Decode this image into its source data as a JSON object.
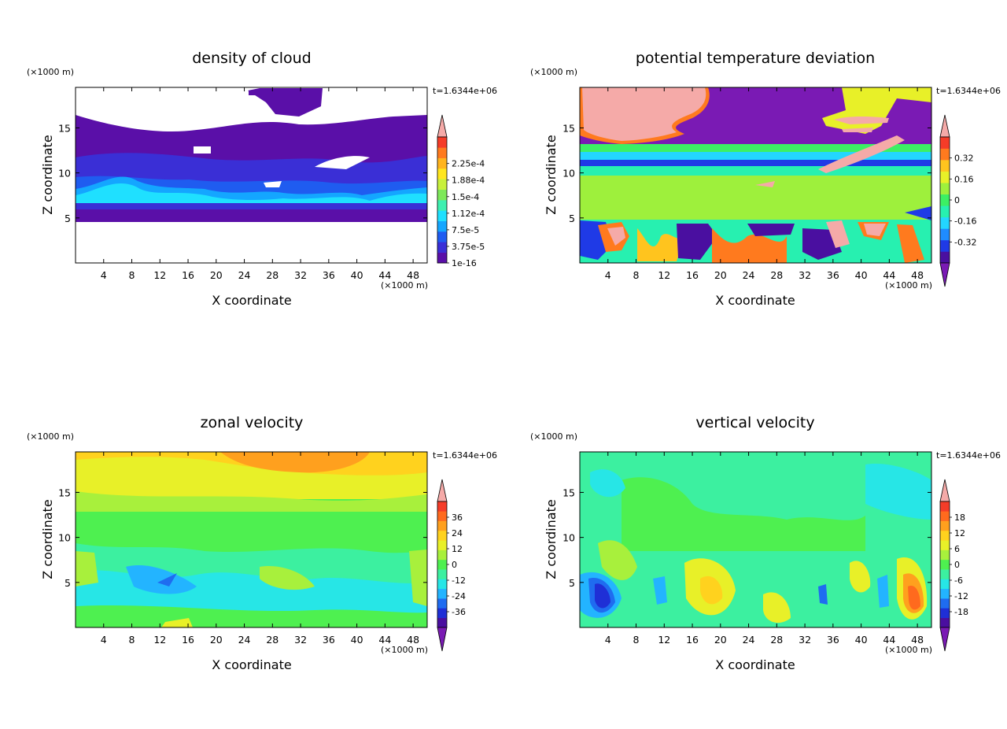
{
  "unit_label": "(×1000 m)",
  "chart_data": [
    {
      "type": "heatmap",
      "title": "density of cloud",
      "xlabel": "X coordinate",
      "ylabel": "Z coordinate",
      "xunit": "(×1000 m)",
      "yunit": "(×1000 m)",
      "time_label": "t=1.6344e+06",
      "xlim": [
        0,
        50
      ],
      "ylim": [
        0,
        19.5
      ],
      "xticks": [
        4,
        8,
        12,
        16,
        20,
        24,
        28,
        32,
        36,
        40,
        44,
        48
      ],
      "yticks": [
        5,
        10,
        15
      ],
      "colorbar": {
        "labels": [
          "1e-16",
          "3.75e-5",
          "7.5e-5",
          "1.12e-4",
          "1.5e-4",
          "1.88e-4",
          "2.25e-4"
        ],
        "colors": [
          "#5a0fa8",
          "#3a2fd6",
          "#1f5cf0",
          "#14a6ff",
          "#1fe0ff",
          "#3ef0b0",
          "#7ee85a",
          "#c8f03c",
          "#ffe61e",
          "#ffb41e",
          "#ff7a1e",
          "#f53c28"
        ],
        "over_color": "#f5aaa8",
        "under_color": null
      }
    },
    {
      "type": "heatmap",
      "title": "potential temperature deviation",
      "xlabel": "X coordinate",
      "ylabel": "Z coordinate",
      "xunit": "(×1000 m)",
      "yunit": "(×1000 m)",
      "time_label": "t=1.6344e+06",
      "xlim": [
        0,
        50
      ],
      "ylim": [
        0,
        19.5
      ],
      "xticks": [
        4,
        8,
        12,
        16,
        20,
        24,
        28,
        32,
        36,
        40,
        44,
        48
      ],
      "yticks": [
        5,
        10,
        15
      ],
      "colorbar": {
        "labels": [
          "-0.32",
          "-0.16",
          "0",
          "0.16",
          "0.32"
        ],
        "colors": [
          "#4a0fa0",
          "#1f3ae6",
          "#1f8cff",
          "#23d6ff",
          "#27f0b0",
          "#3cf064",
          "#9ef03c",
          "#e8f028",
          "#ffc41e",
          "#ff7a1e",
          "#f53c28"
        ],
        "over_color": "#f5aaa8",
        "under_color": "#7a1ab4"
      }
    },
    {
      "type": "heatmap",
      "title": "zonal velocity",
      "xlabel": "X coordinate",
      "ylabel": "Z coordinate",
      "xunit": "(×1000 m)",
      "yunit": "(×1000 m)",
      "time_label": "t=1.6344e+06",
      "xlim": [
        0,
        50
      ],
      "ylim": [
        0,
        19.5
      ],
      "xticks": [
        4,
        8,
        12,
        16,
        20,
        24,
        28,
        32,
        36,
        40,
        44,
        48
      ],
      "yticks": [
        5,
        10,
        15
      ],
      "colorbar": {
        "labels": [
          "-36",
          "-24",
          "-12",
          "0",
          "12",
          "24",
          "36"
        ],
        "colors": [
          "#4a0fa0",
          "#1f2fd6",
          "#1f6cf0",
          "#23b4ff",
          "#27e6e6",
          "#3cf0a0",
          "#4ef050",
          "#a8f03c",
          "#e8f028",
          "#ffd21e",
          "#ffa01e",
          "#ff6a1e",
          "#f53c28"
        ],
        "over_color": "#f5aaa8",
        "under_color": "#7a1ab4"
      }
    },
    {
      "type": "heatmap",
      "title": "vertical velocity",
      "xlabel": "X coordinate",
      "ylabel": "Z coordinate",
      "xunit": "(×1000 m)",
      "yunit": "(×1000 m)",
      "time_label": "t=1.6344e+06",
      "xlim": [
        0,
        50
      ],
      "ylim": [
        0,
        19.5
      ],
      "xticks": [
        4,
        8,
        12,
        16,
        20,
        24,
        28,
        32,
        36,
        40,
        44,
        48
      ],
      "yticks": [
        5,
        10,
        15
      ],
      "colorbar": {
        "labels": [
          "-18",
          "-12",
          "-6",
          "0",
          "6",
          "12",
          "18"
        ],
        "colors": [
          "#4a0fa0",
          "#1f2fd6",
          "#1f6cf0",
          "#23b4ff",
          "#27e6e6",
          "#3cf0a0",
          "#4ef050",
          "#a8f03c",
          "#e8f028",
          "#ffd21e",
          "#ffa01e",
          "#ff6a1e",
          "#f53c28"
        ],
        "over_color": "#f5aaa8",
        "under_color": "#7a1ab4"
      }
    }
  ]
}
